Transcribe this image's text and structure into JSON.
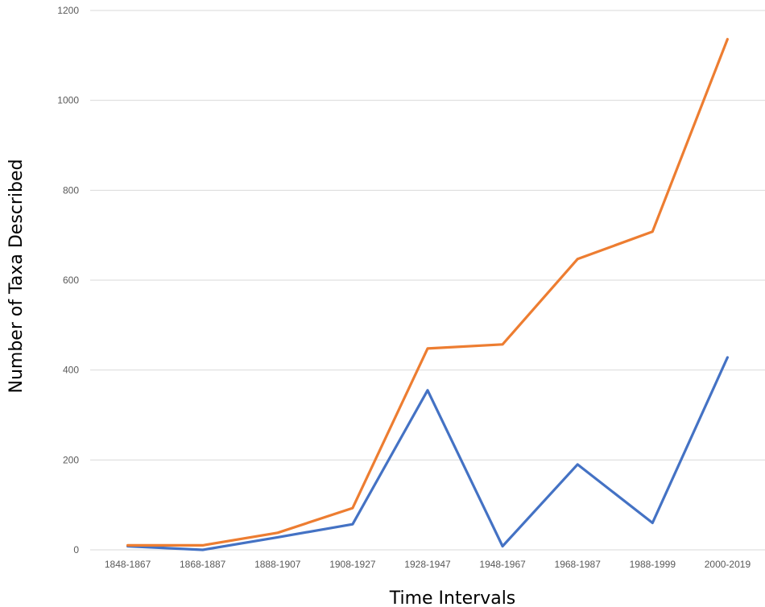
{
  "chart_data": {
    "type": "line",
    "xlabel": "Time Intervals",
    "ylabel": "Number of Taxa Described",
    "categories": [
      "1848-1867",
      "1868-1887",
      "1888-1907",
      "1908-1927",
      "1928-1947",
      "1948-1967",
      "1968-1987",
      "1988-1999",
      "2000-2019"
    ],
    "ylim": [
      0,
      1200
    ],
    "yticks": [
      0,
      200,
      400,
      600,
      800,
      1000,
      1200
    ],
    "grid": true,
    "legend": "none",
    "series": [
      {
        "color": "#4472c4",
        "values": [
          8,
          0,
          28,
          57,
          355,
          8,
          190,
          60,
          428
        ]
      },
      {
        "color": "#ed7d31",
        "values": [
          10,
          10,
          38,
          93,
          448,
          457,
          647,
          708,
          1136
        ]
      }
    ]
  }
}
